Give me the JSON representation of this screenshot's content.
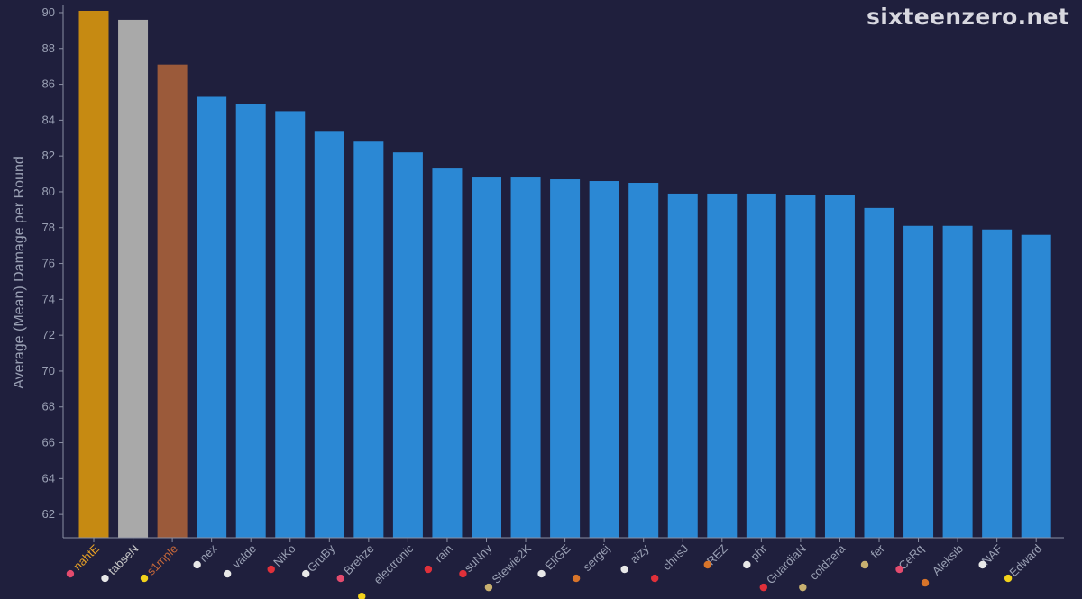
{
  "brand": "sixteenzero.net",
  "colors": {
    "background": "#1f1f3d",
    "axis": "#8a8fa3",
    "axis_text": "#9aa0b4",
    "bar_default": "#2b88d4",
    "bar_gold": "#c68a12",
    "bar_silver": "#a9a9a9",
    "bar_bronze": "#9b5a3a",
    "label_gold": "#e6a026",
    "label_silver": "#c8c8c8",
    "label_bronze": "#c4673a",
    "label_default": "#9aa0b4"
  },
  "chart_data": {
    "type": "bar",
    "title": "",
    "xlabel": "",
    "ylabel": "Average (Mean) Damage per Round",
    "ylim": [
      60.7,
      90.3
    ],
    "yticks": [
      62,
      64,
      66,
      68,
      70,
      72,
      74,
      76,
      78,
      80,
      82,
      84,
      86,
      88,
      90
    ],
    "grid": false,
    "legend": "none",
    "categories": [
      "nahtE",
      "tabseN",
      "s1mple",
      "nex",
      "valde",
      "NiKo",
      "GruBy",
      "Brehze",
      "electronic",
      "rain",
      "suNny",
      "Stewie2K",
      "EliGE",
      "sergej",
      "aizy",
      "chrisJ",
      "REZ",
      "phr",
      "GuardiaN",
      "coldzera",
      "fer",
      "CeRq",
      "Aleksib",
      "NAF",
      "Edward"
    ],
    "values": [
      90.1,
      89.6,
      87.1,
      85.3,
      84.9,
      84.5,
      83.4,
      82.8,
      82.2,
      81.3,
      80.8,
      80.8,
      80.7,
      80.6,
      80.5,
      79.9,
      79.9,
      79.9,
      79.8,
      79.8,
      79.1,
      78.1,
      78.1,
      77.9,
      77.6
    ],
    "bar_colors": [
      "gold",
      "silver",
      "bronze",
      "default",
      "default",
      "default",
      "default",
      "default",
      "default",
      "default",
      "default",
      "default",
      "default",
      "default",
      "default",
      "default",
      "default",
      "default",
      "default",
      "default",
      "default",
      "default",
      "default",
      "default",
      "default"
    ],
    "team_icons": [
      "flag-pink",
      "white-logo",
      "yellow-logo",
      "white-logo",
      "white-logo",
      "red-logo",
      "white-logo",
      "flag-pink",
      "yellow-logo",
      "red-logo",
      "red-logo",
      "dark-logo",
      "white-logo",
      "orange-logo",
      "white-logo",
      "red-logo",
      "orange-logo",
      "white-logo",
      "red-logo",
      "dark-logo",
      "dark-logo",
      "flag-pink",
      "orange-logo",
      "white-logo",
      "yellow-logo"
    ]
  }
}
